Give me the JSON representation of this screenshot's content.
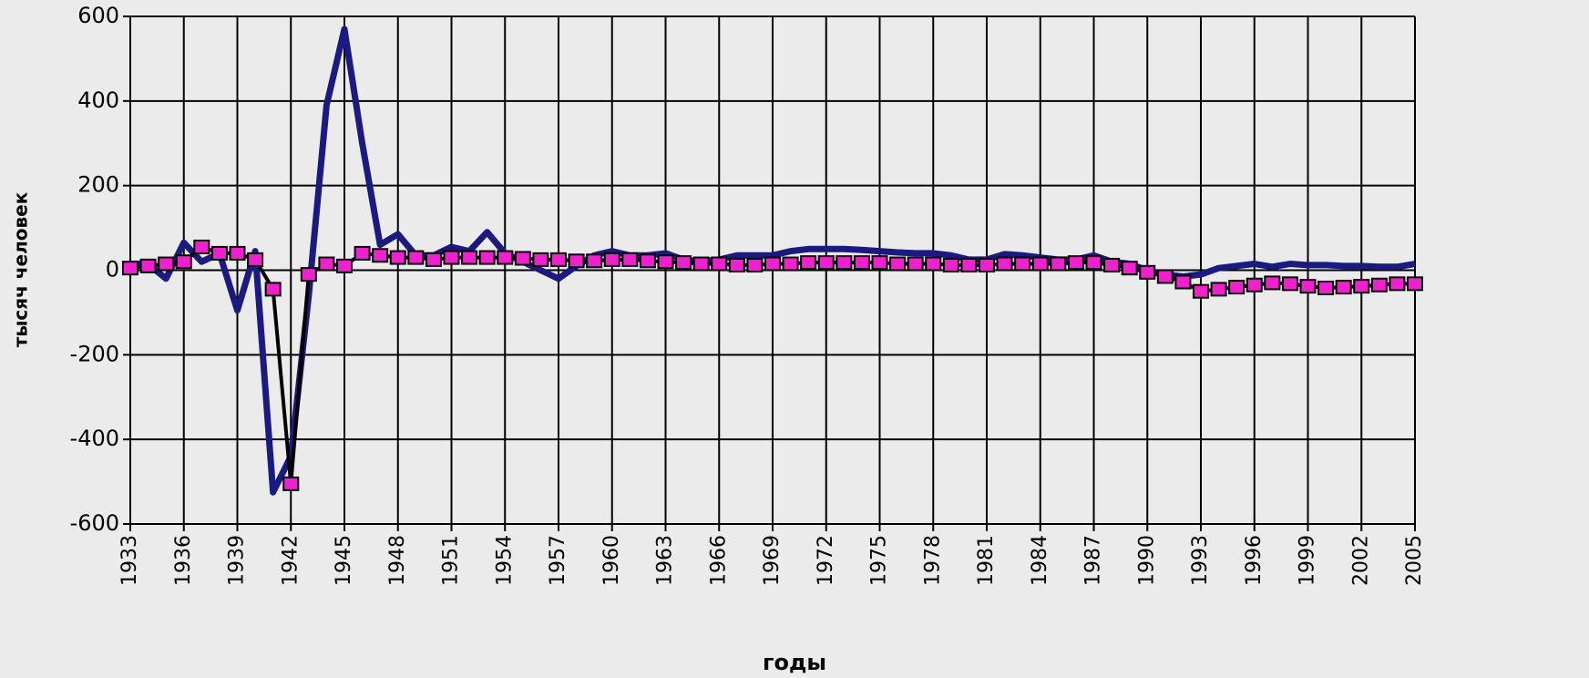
{
  "chart_data": {
    "type": "line",
    "x_label": "годы",
    "y_label": "тысяч человек",
    "x": [
      1933,
      1934,
      1935,
      1936,
      1937,
      1938,
      1939,
      1940,
      1941,
      1942,
      1943,
      1944,
      1945,
      1946,
      1947,
      1948,
      1949,
      1950,
      1951,
      1952,
      1953,
      1954,
      1955,
      1956,
      1957,
      1958,
      1959,
      1960,
      1961,
      1962,
      1963,
      1964,
      1965,
      1966,
      1967,
      1968,
      1969,
      1970,
      1971,
      1972,
      1973,
      1974,
      1975,
      1976,
      1977,
      1978,
      1979,
      1980,
      1981,
      1982,
      1983,
      1984,
      1985,
      1986,
      1987,
      1988,
      1989,
      1990,
      1991,
      1992,
      1993,
      1994,
      1995,
      1996,
      1997,
      1998,
      1999,
      2000,
      2001,
      2002,
      2003,
      2004,
      2005
    ],
    "series": [
      {
        "color": "#1a1a80",
        "values": [
          15,
          15,
          -20,
          65,
          20,
          40,
          -95,
          45,
          -525,
          -440,
          -60,
          390,
          570,
          300,
          60,
          85,
          35,
          35,
          55,
          45,
          90,
          40,
          20,
          0,
          -20,
          10,
          35,
          45,
          35,
          35,
          40,
          25,
          20,
          25,
          35,
          35,
          35,
          45,
          50,
          50,
          50,
          48,
          45,
          42,
          40,
          40,
          35,
          25,
          25,
          38,
          35,
          30,
          25,
          25,
          35,
          20,
          15,
          0,
          -10,
          -15,
          -10,
          5,
          10,
          15,
          8,
          15,
          12,
          12,
          10,
          10,
          8,
          8,
          15
        ]
      },
      {
        "color": "#ee22cc",
        "values": [
          5,
          10,
          15,
          20,
          55,
          40,
          40,
          25,
          -45,
          -505,
          -10,
          15,
          10,
          40,
          35,
          30,
          30,
          25,
          30,
          30,
          30,
          30,
          28,
          25,
          25,
          22,
          22,
          25,
          25,
          22,
          20,
          18,
          15,
          15,
          12,
          12,
          15,
          15,
          18,
          18,
          18,
          18,
          18,
          15,
          15,
          15,
          12,
          12,
          12,
          15,
          15,
          15,
          15,
          18,
          18,
          12,
          5,
          -5,
          -15,
          -28,
          -50,
          -45,
          -40,
          -35,
          -30,
          -32,
          -38,
          -42,
          -40,
          -38,
          -35,
          -32,
          -32
        ]
      }
    ],
    "xlim": [
      1933,
      2005
    ],
    "xticks": [
      1933,
      1936,
      1939,
      1942,
      1945,
      1948,
      1951,
      1954,
      1957,
      1960,
      1963,
      1966,
      1969,
      1972,
      1975,
      1978,
      1981,
      1984,
      1987,
      1990,
      1993,
      1996,
      1999,
      2002,
      2005
    ],
    "ylim": [
      -600,
      600
    ],
    "yticks": [
      -600,
      -400,
      -200,
      0,
      200,
      400,
      600
    ],
    "grid": true
  }
}
